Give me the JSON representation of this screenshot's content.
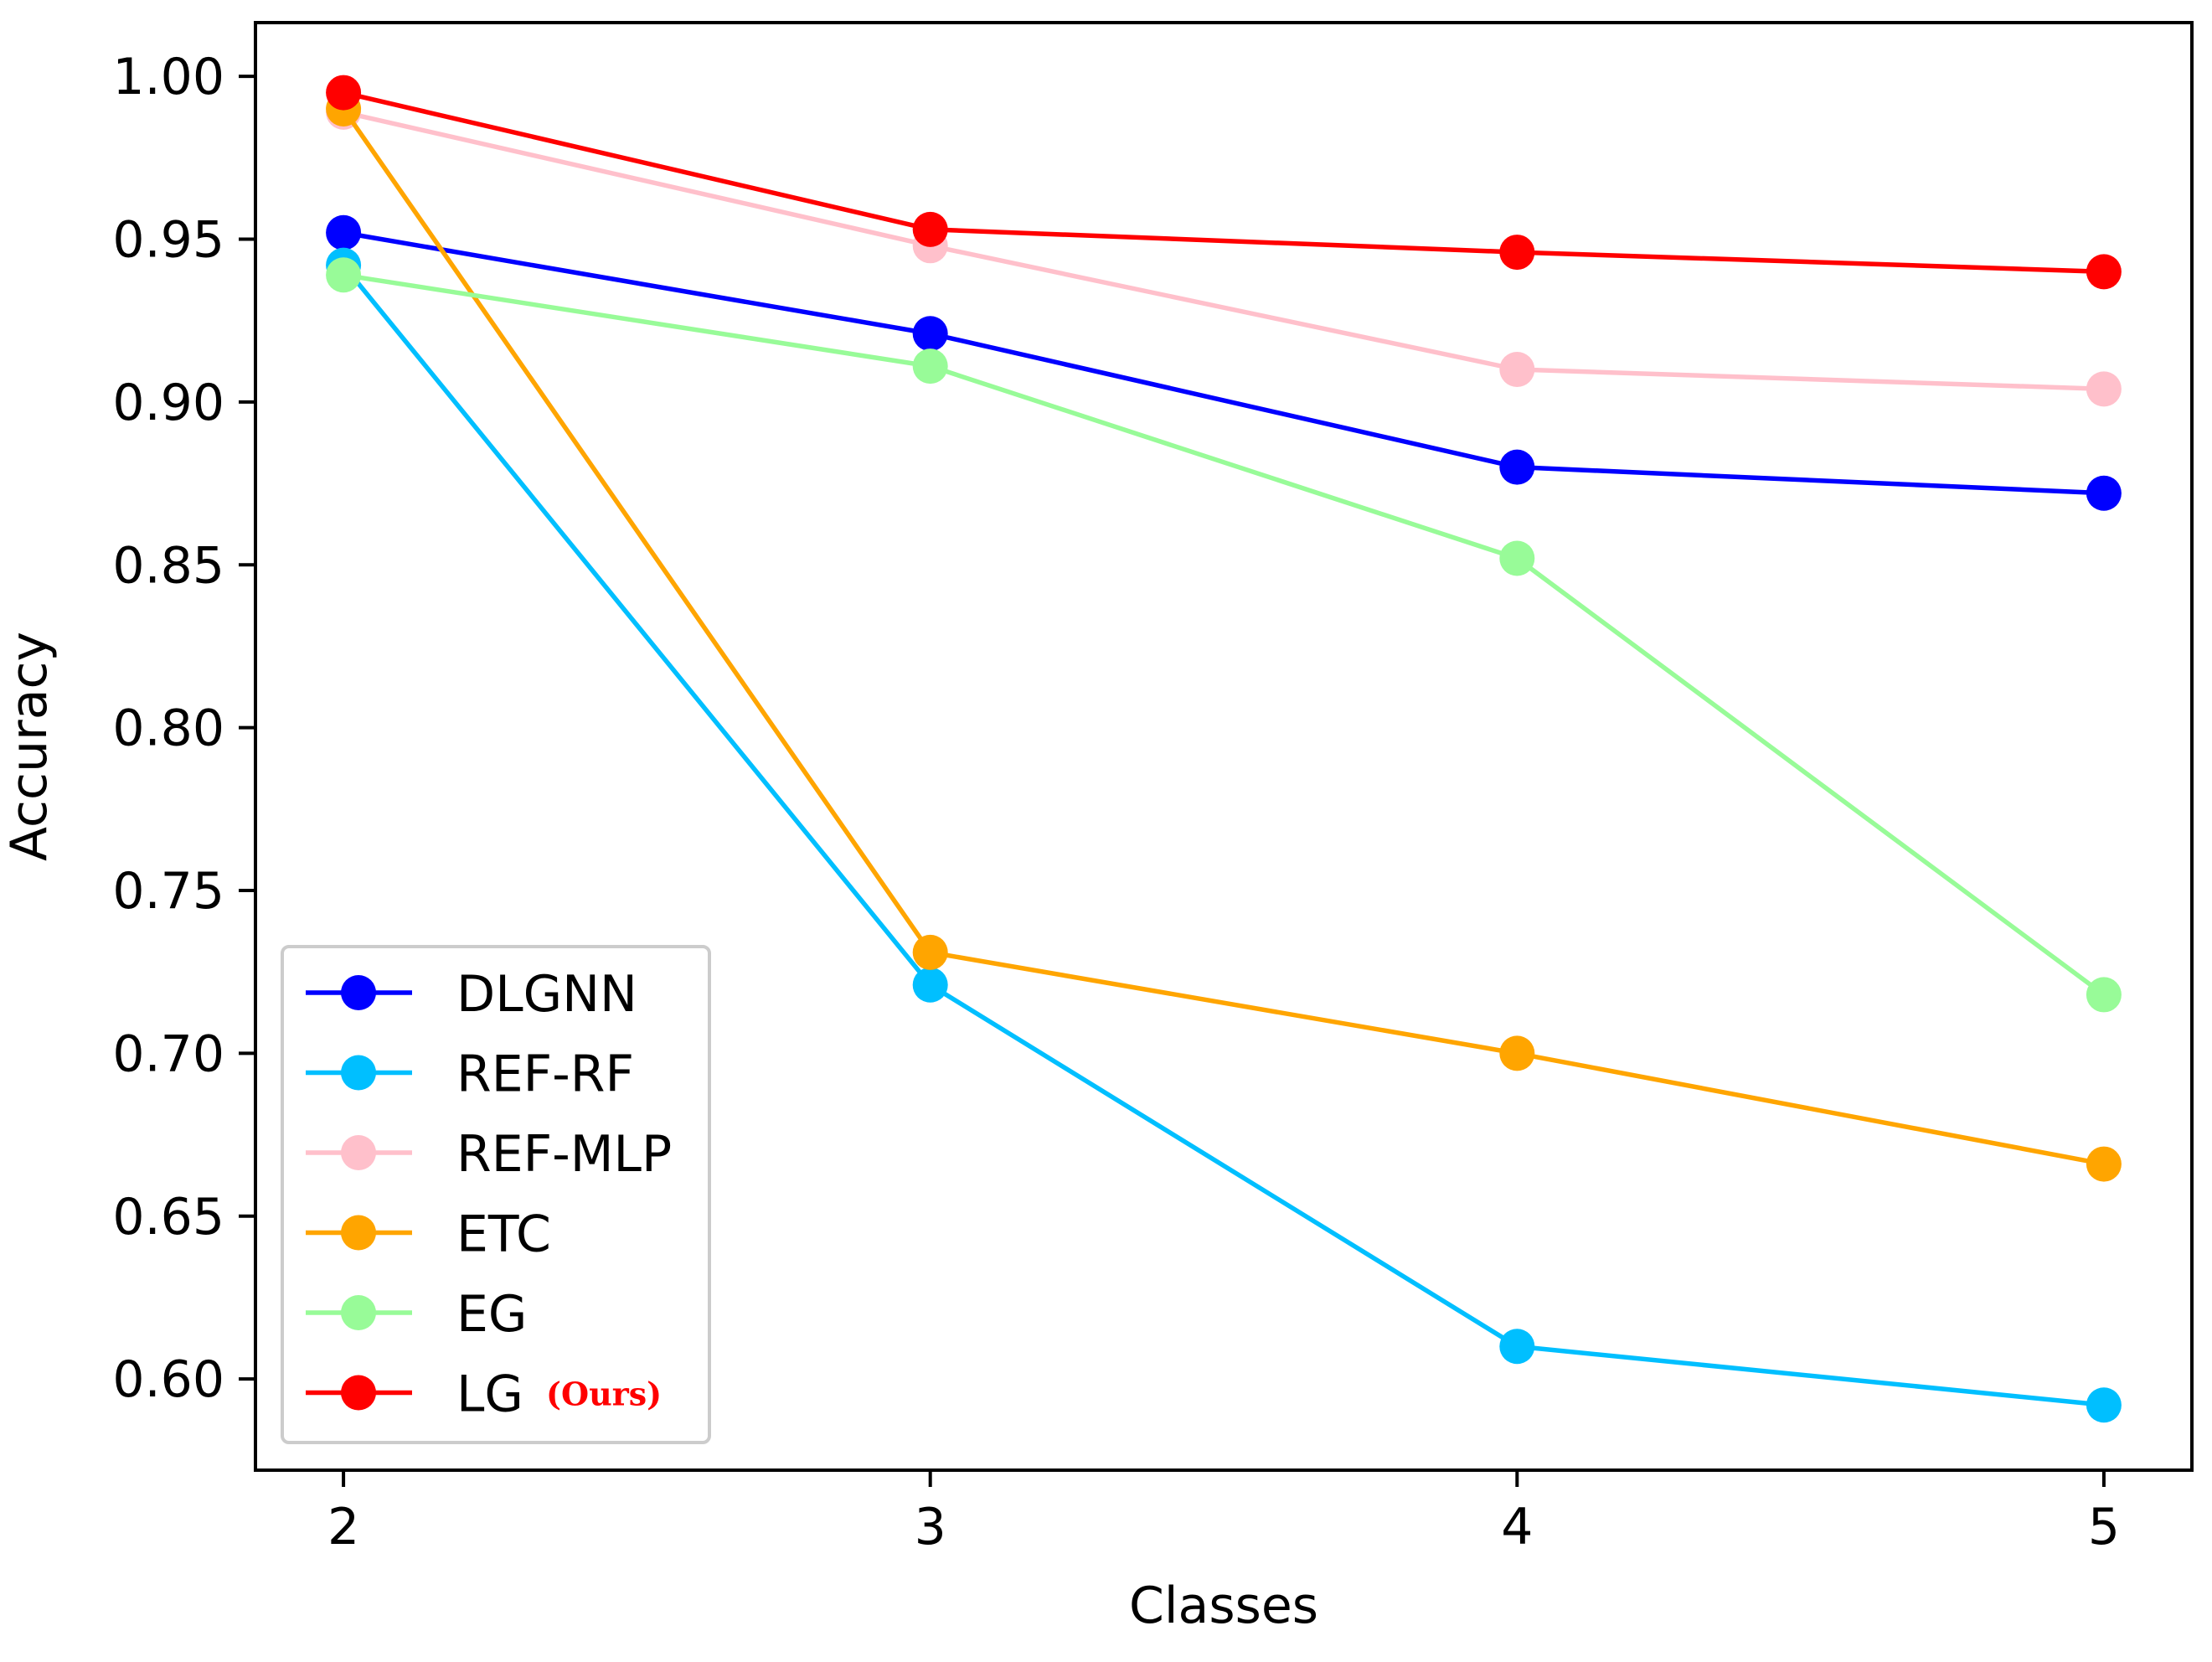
{
  "chart_data": {
    "type": "line",
    "title": "",
    "xlabel": "Classes",
    "ylabel": "Accuracy",
    "x": [
      2,
      3,
      4,
      5
    ],
    "x_tick_labels": [
      "2",
      "3",
      "4",
      "5"
    ],
    "y_tick_values": [
      0.6,
      0.65,
      0.7,
      0.75,
      0.8,
      0.85,
      0.9,
      0.95,
      1.0
    ],
    "y_tick_labels": [
      "0.60",
      "0.65",
      "0.70",
      "0.75",
      "0.80",
      "0.85",
      "0.90",
      "0.95",
      "1.00"
    ],
    "xlim": [
      1.85,
      5.15
    ],
    "ylim": [
      0.572,
      1.0165
    ],
    "grid": false,
    "legend_position": "lower-left",
    "series": [
      {
        "name": "DLGNN",
        "suffix": "",
        "color": "#0000ff",
        "values": [
          0.952,
          0.921,
          0.88,
          0.872
        ]
      },
      {
        "name": "REF-RF",
        "suffix": "",
        "color": "#00bfff",
        "values": [
          0.942,
          0.721,
          0.61,
          0.592
        ]
      },
      {
        "name": "REF-MLP",
        "suffix": "",
        "color": "#ffc0cb",
        "values": [
          0.989,
          0.948,
          0.91,
          0.904
        ]
      },
      {
        "name": "ETC",
        "suffix": "",
        "color": "#ffa500",
        "values": [
          0.99,
          0.731,
          0.7,
          0.666
        ]
      },
      {
        "name": "EG",
        "suffix": "",
        "color": "#98fb98",
        "values": [
          0.939,
          0.911,
          0.852,
          0.718
        ]
      },
      {
        "name": "LG",
        "suffix": "(Ours)",
        "suffix_color": "#ff0000",
        "color": "#ff0000",
        "values": [
          0.995,
          0.953,
          0.946,
          0.94
        ]
      }
    ]
  }
}
